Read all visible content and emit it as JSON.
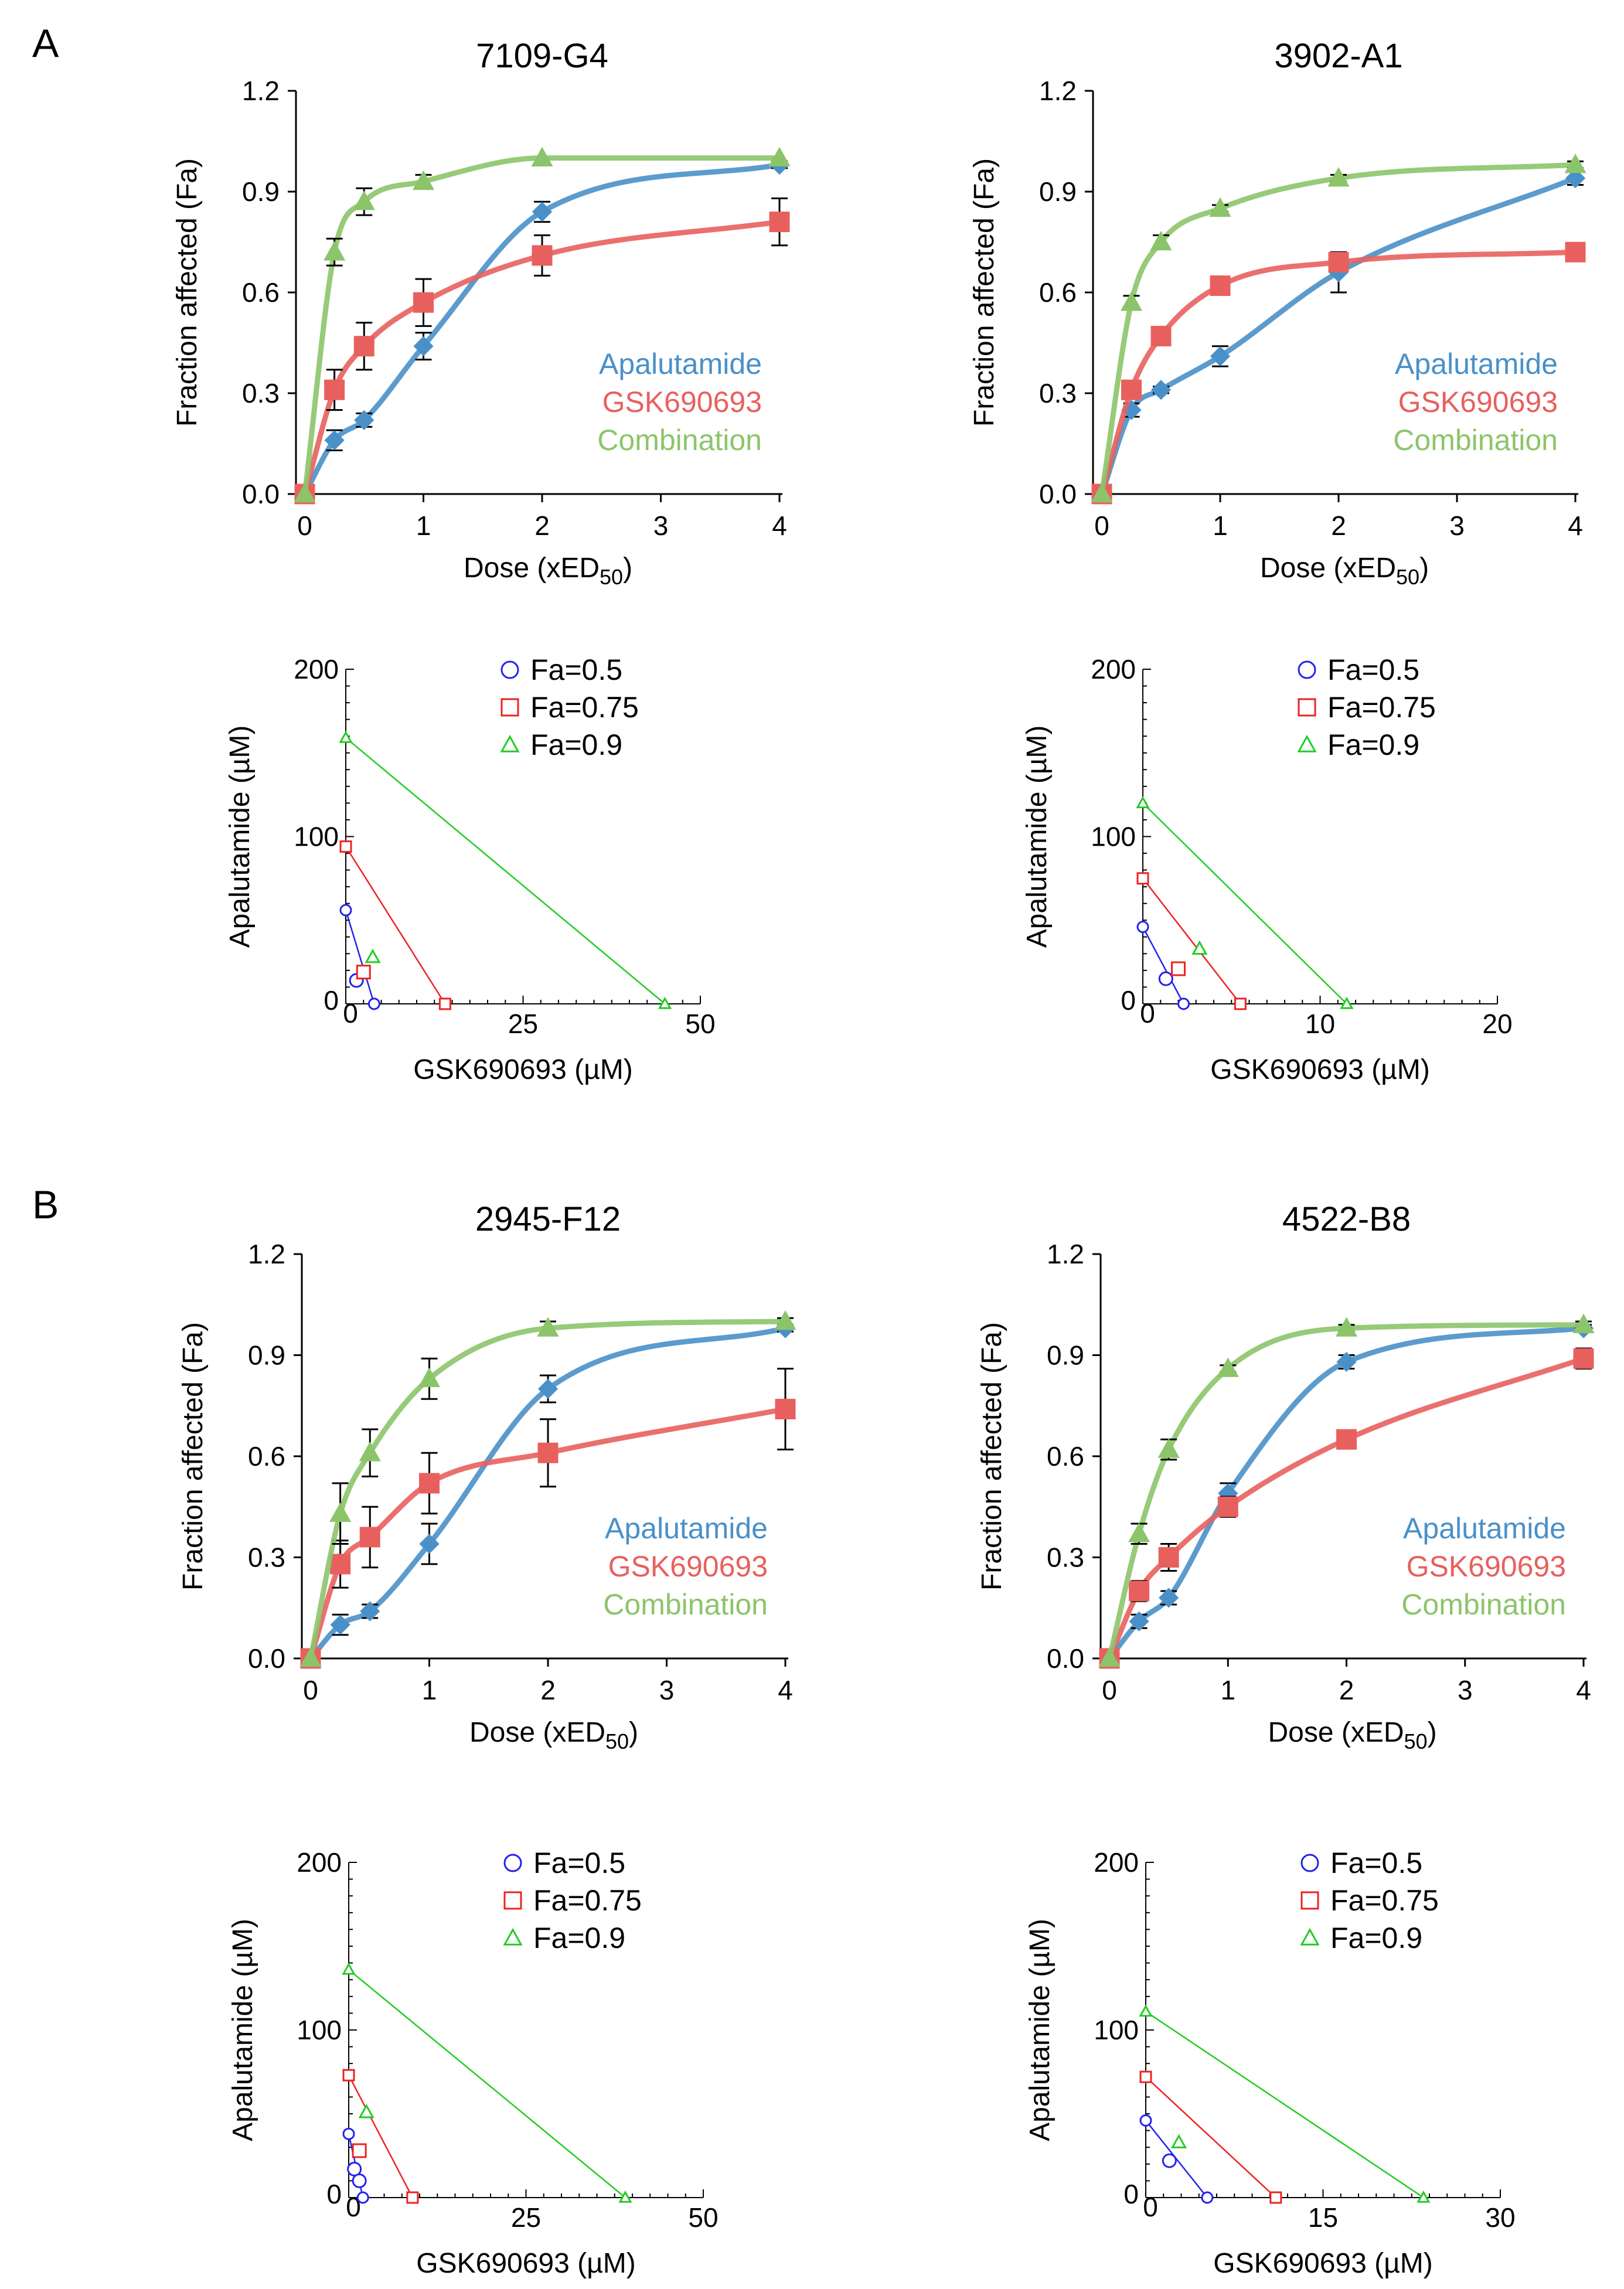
{
  "panel_labels": {
    "a": "A",
    "b": "B"
  },
  "colors": {
    "apalutamide": "#4a90c8",
    "gsk": "#e8605e",
    "combination": "#8cc46a",
    "iso_05": "#2222ee",
    "iso_075": "#ee2222",
    "iso_09": "#22cc22",
    "errorbar": "#000000"
  },
  "chart_data": [
    {
      "type": "line",
      "title": "7109-G4",
      "xlabel": "Dose (xED50)",
      "ylabel": "Fraction affected (Fa)",
      "xlim": [
        0,
        4
      ],
      "ylim": [
        0,
        1.2
      ],
      "x_ticks": [
        "0",
        "1",
        "2",
        "3",
        "4"
      ],
      "y_ticks": [
        "0.0",
        "0.3",
        "0.6",
        "0.9",
        "1.2"
      ],
      "x": [
        0,
        0.25,
        0.5,
        1,
        2,
        4
      ],
      "series": [
        {
          "name": "Apalutamide",
          "values": [
            0,
            0.16,
            0.22,
            0.44,
            0.84,
            0.98
          ],
          "errors": [
            0,
            0.03,
            0.02,
            0.04,
            0.03,
            0.01
          ]
        },
        {
          "name": "GSK690693",
          "values": [
            0,
            0.31,
            0.44,
            0.57,
            0.71,
            0.81
          ],
          "errors": [
            0,
            0.06,
            0.07,
            0.07,
            0.06,
            0.07
          ]
        },
        {
          "name": "Combination",
          "values": [
            0,
            0.72,
            0.87,
            0.93,
            1.0,
            1.0
          ],
          "errors": [
            0,
            0.04,
            0.04,
            0.02,
            0,
            0
          ]
        }
      ]
    },
    {
      "type": "line",
      "title": "3902-A1",
      "xlabel": "Dose (xED50)",
      "ylabel": "Fraction affected (Fa)",
      "xlim": [
        0,
        4
      ],
      "ylim": [
        0,
        1.2
      ],
      "x_ticks": [
        "0",
        "1",
        "2",
        "3",
        "4"
      ],
      "y_ticks": [
        "0.0",
        "0.3",
        "0.6",
        "0.9",
        "1.2"
      ],
      "x": [
        0,
        0.25,
        0.5,
        1,
        2,
        4
      ],
      "series": [
        {
          "name": "Apalutamide",
          "values": [
            0,
            0.25,
            0.31,
            0.41,
            0.66,
            0.94
          ],
          "errors": [
            0,
            0.02,
            0.01,
            0.03,
            0.06,
            0.02
          ]
        },
        {
          "name": "GSK690693",
          "values": [
            0,
            0.31,
            0.47,
            0.62,
            0.69,
            0.72
          ],
          "errors": [
            0,
            0.02,
            0.02,
            0.02,
            0.02,
            0.02
          ]
        },
        {
          "name": "Combination",
          "values": [
            0,
            0.57,
            0.75,
            0.85,
            0.94,
            0.98
          ],
          "errors": [
            0,
            0.02,
            0.02,
            0.01,
            0.01,
            0.01
          ]
        }
      ]
    },
    {
      "type": "scatter",
      "subtype": "isobologram",
      "xlabel": "GSK690693 (µM)",
      "ylabel": "Apalutamide (µM)",
      "xlim": [
        0,
        50
      ],
      "ylim": [
        0,
        200
      ],
      "x_ticks": [
        "0",
        "25",
        "50"
      ],
      "y_ticks": [
        "0",
        "100",
        "200"
      ],
      "series": [
        {
          "name": "Fa=0.5",
          "marker": "circle",
          "line": [
            [
              0,
              56
            ],
            [
              4,
              0
            ]
          ],
          "points": [
            [
              1.5,
              14
            ]
          ]
        },
        {
          "name": "Fa=0.75",
          "marker": "square",
          "line": [
            [
              0,
              94
            ],
            [
              14,
              0
            ]
          ],
          "points": [
            [
              2.5,
              19
            ]
          ]
        },
        {
          "name": "Fa=0.9",
          "marker": "triangle",
          "line": [
            [
              0,
              159
            ],
            [
              45,
              0
            ]
          ],
          "points": [
            [
              3.8,
              28
            ]
          ]
        }
      ]
    },
    {
      "type": "scatter",
      "subtype": "isobologram",
      "xlabel": "GSK690693 (µM)",
      "ylabel": "Apalutamide (µM)",
      "xlim": [
        0,
        20
      ],
      "ylim": [
        0,
        200
      ],
      "x_ticks": [
        "0",
        "10",
        "20"
      ],
      "y_ticks": [
        "0",
        "100",
        "200"
      ],
      "series": [
        {
          "name": "Fa=0.5",
          "marker": "circle",
          "line": [
            [
              0,
              46
            ],
            [
              2.3,
              0
            ]
          ],
          "points": [
            [
              1.3,
              15
            ]
          ]
        },
        {
          "name": "Fa=0.75",
          "marker": "square",
          "line": [
            [
              0,
              75
            ],
            [
              5.5,
              0
            ]
          ],
          "points": [
            [
              2,
              21
            ]
          ]
        },
        {
          "name": "Fa=0.9",
          "marker": "triangle",
          "line": [
            [
              0,
              120
            ],
            [
              11.5,
              0
            ]
          ],
          "points": [
            [
              3.2,
              33
            ]
          ]
        }
      ]
    },
    {
      "type": "line",
      "title": "2945-F12",
      "xlabel": "Dose (xED50)",
      "ylabel": "Fraction affected (Fa)",
      "xlim": [
        0,
        4
      ],
      "ylim": [
        0,
        1.2
      ],
      "x_ticks": [
        "0",
        "1",
        "2",
        "3",
        "4"
      ],
      "y_ticks": [
        "0.0",
        "0.3",
        "0.6",
        "0.9",
        "1.2"
      ],
      "x": [
        0,
        0.25,
        0.5,
        1,
        2,
        4
      ],
      "series": [
        {
          "name": "Apalutamide",
          "values": [
            0,
            0.1,
            0.14,
            0.34,
            0.8,
            0.98
          ],
          "errors": [
            0,
            0.03,
            0.02,
            0.06,
            0.04,
            0.01
          ]
        },
        {
          "name": "GSK690693",
          "values": [
            0,
            0.28,
            0.36,
            0.52,
            0.61,
            0.74
          ],
          "errors": [
            0,
            0.07,
            0.09,
            0.09,
            0.1,
            0.12
          ]
        },
        {
          "name": "Combination",
          "values": [
            0,
            0.43,
            0.61,
            0.83,
            0.98,
            1.0
          ],
          "errors": [
            0,
            0.09,
            0.07,
            0.06,
            0.02,
            0.01
          ]
        }
      ]
    },
    {
      "type": "line",
      "title": "4522-B8",
      "xlabel": "Dose (xED50)",
      "ylabel": "Fraction affected (Fa)",
      "xlim": [
        0,
        4
      ],
      "ylim": [
        0,
        1.2
      ],
      "x_ticks": [
        "0",
        "1",
        "2",
        "3",
        "4"
      ],
      "y_ticks": [
        "0.0",
        "0.3",
        "0.6",
        "0.9",
        "1.2"
      ],
      "x": [
        0,
        0.25,
        0.5,
        1,
        2,
        4
      ],
      "series": [
        {
          "name": "Apalutamide",
          "values": [
            0,
            0.11,
            0.18,
            0.49,
            0.88,
            0.98
          ],
          "errors": [
            0,
            0.02,
            0.02,
            0.03,
            0.02,
            0.01
          ]
        },
        {
          "name": "GSK690693",
          "values": [
            0,
            0.2,
            0.3,
            0.45,
            0.65,
            0.89
          ],
          "errors": [
            0,
            0.03,
            0.04,
            0.03,
            0.02,
            0.03
          ]
        },
        {
          "name": "Combination",
          "values": [
            0,
            0.37,
            0.62,
            0.86,
            0.98,
            0.99
          ],
          "errors": [
            0,
            0.03,
            0.03,
            0.01,
            0.01,
            0.01
          ]
        }
      ]
    },
    {
      "type": "scatter",
      "subtype": "isobologram",
      "xlabel": "GSK690693 (µM)",
      "ylabel": "Apalutamide (µM)",
      "xlim": [
        0,
        50
      ],
      "ylim": [
        0,
        200
      ],
      "x_ticks": [
        "0",
        "25",
        "50"
      ],
      "y_ticks": [
        "0",
        "100",
        "200"
      ],
      "series": [
        {
          "name": "Fa=0.5",
          "marker": "circle",
          "line": [
            [
              0,
              38
            ],
            [
              2,
              0
            ]
          ],
          "points": [
            [
              0.8,
              17
            ],
            [
              1.5,
              10
            ]
          ]
        },
        {
          "name": "Fa=0.75",
          "marker": "square",
          "line": [
            [
              0,
              73
            ],
            [
              9,
              0
            ]
          ],
          "points": [
            [
              1.5,
              28
            ]
          ]
        },
        {
          "name": "Fa=0.9",
          "marker": "triangle",
          "line": [
            [
              0,
              136
            ],
            [
              39,
              0
            ]
          ],
          "points": [
            [
              2.5,
              51
            ]
          ]
        }
      ]
    },
    {
      "type": "scatter",
      "subtype": "isobologram",
      "xlabel": "GSK690693 (µM)",
      "ylabel": "Apalutamide (µM)",
      "xlim": [
        0,
        30
      ],
      "ylim": [
        0,
        200
      ],
      "x_ticks": [
        "0",
        "15",
        "30"
      ],
      "y_ticks": [
        "0",
        "100",
        "200"
      ],
      "series": [
        {
          "name": "Fa=0.5",
          "marker": "circle",
          "line": [
            [
              0,
              46
            ],
            [
              5.2,
              0
            ]
          ],
          "points": [
            [
              2,
              22
            ]
          ]
        },
        {
          "name": "Fa=0.75",
          "marker": "square",
          "line": [
            [
              0,
              72
            ],
            [
              11,
              0
            ]
          ],
          "points": []
        },
        {
          "name": "Fa=0.9",
          "marker": "triangle",
          "line": [
            [
              0,
              111
            ],
            [
              23.5,
              0
            ]
          ],
          "points": [
            [
              2.8,
              33
            ]
          ]
        }
      ]
    }
  ]
}
